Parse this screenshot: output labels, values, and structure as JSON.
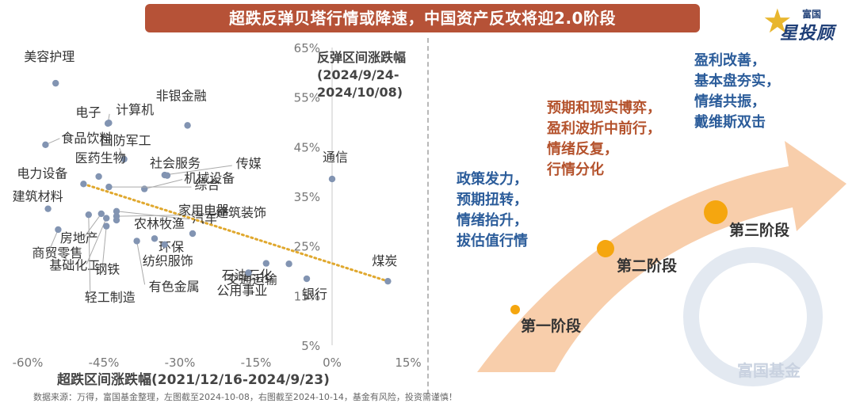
{
  "title": "超跌反弹贝塔行情或降速，中国资产反攻将迎2.0阶段",
  "logo": {
    "line1": "富国",
    "line2": "星投顾"
  },
  "chart_data": {
    "type": "scatter",
    "xlabel": "超跌区间涨跌幅(2021/12/16-2024/9/23)",
    "ylabel": "反弹区间涨跌幅\n(2024/9/24-\n2024/10/08)",
    "xlim": [
      -0.6,
      0.15
    ],
    "ylim": [
      0.05,
      0.65
    ],
    "x_ticks": [
      "-60%",
      "-45%",
      "-30%",
      "-15%",
      "0%",
      "15%"
    ],
    "y_ticks": [
      "5%",
      "15%",
      "25%",
      "35%",
      "45%",
      "55%",
      "65%"
    ],
    "trendline": {
      "style": "dotted",
      "color": "#e0a82e",
      "from": [
        -0.49,
        0.375
      ],
      "to": [
        0.11,
        0.179
      ]
    },
    "points": [
      {
        "name": "美容护理",
        "x": -0.545,
        "y": 0.578
      },
      {
        "name": "计算机",
        "x": -0.442,
        "y": 0.497
      },
      {
        "name": "非银金融",
        "x": -0.285,
        "y": 0.493
      },
      {
        "name": "电子",
        "x": -0.44,
        "y": 0.498
      },
      {
        "name": "国防军工",
        "x": -0.41,
        "y": 0.425
      },
      {
        "name": "食品饮料",
        "x": -0.565,
        "y": 0.454
      },
      {
        "name": "传媒",
        "x": -0.33,
        "y": 0.393
      },
      {
        "name": "医药生物",
        "x": -0.46,
        "y": 0.39
      },
      {
        "name": "社会服务",
        "x": -0.325,
        "y": 0.392
      },
      {
        "name": "电力设备",
        "x": -0.49,
        "y": 0.375
      },
      {
        "name": "通信",
        "x": 0.0,
        "y": 0.385
      },
      {
        "name": "机械设备",
        "x": -0.37,
        "y": 0.365
      },
      {
        "name": "建筑材料",
        "x": -0.56,
        "y": 0.325
      },
      {
        "name": "综合",
        "x": -0.44,
        "y": 0.369
      },
      {
        "name": "建筑装饰",
        "x": -0.425,
        "y": 0.31
      },
      {
        "name": "汽车",
        "x": -0.425,
        "y": 0.32
      },
      {
        "name": "农林牧渔",
        "x": -0.425,
        "y": 0.302
      },
      {
        "name": "家用电器",
        "x": -0.275,
        "y": 0.275
      },
      {
        "name": "商贸零售",
        "x": -0.54,
        "y": 0.283
      },
      {
        "name": "环保",
        "x": -0.35,
        "y": 0.265
      },
      {
        "name": "房地产",
        "x": -0.455,
        "y": 0.315
      },
      {
        "name": "纺织服饰",
        "x": -0.33,
        "y": 0.253
      },
      {
        "name": "石油石化",
        "x": -0.085,
        "y": 0.214
      },
      {
        "name": "基础化工",
        "x": -0.445,
        "y": 0.306
      },
      {
        "name": "交通运输",
        "x": -0.13,
        "y": 0.215
      },
      {
        "name": "钢铁",
        "x": -0.445,
        "y": 0.29
      },
      {
        "name": "有色金属",
        "x": -0.385,
        "y": 0.26
      },
      {
        "name": "煤炭",
        "x": 0.11,
        "y": 0.179
      },
      {
        "name": "公用事业",
        "x": -0.165,
        "y": 0.196
      },
      {
        "name": "银行",
        "x": -0.05,
        "y": 0.184
      },
      {
        "name": "轻工制造",
        "x": -0.48,
        "y": 0.313
      }
    ]
  },
  "right_panel": {
    "stages": [
      "第一阶段",
      "第二阶段",
      "第三阶段"
    ],
    "stage1_lines": [
      "政策发力，",
      "预期扭转，",
      "情绪抬升，",
      "拔估值行情"
    ],
    "stage2_lines": [
      "预期和现实博弈，",
      "盈利波折中前行，",
      "情绪反复，",
      "行情分化"
    ],
    "stage3_lines": [
      "盈利改善，",
      "基本盘夯实，",
      "情绪共振，",
      "戴维斯双击"
    ],
    "watermark": "富国基金",
    "colors": {
      "blue": "#2b5c9a",
      "rust": "#b4522c",
      "arrow": "#f5c39a",
      "dot": "#f5a60f"
    }
  },
  "footnote": "数据来源：万得，富国基金整理，左图截至2024-10-08，右图截至2024-10-14，基金有风险，投资需谨慎！"
}
